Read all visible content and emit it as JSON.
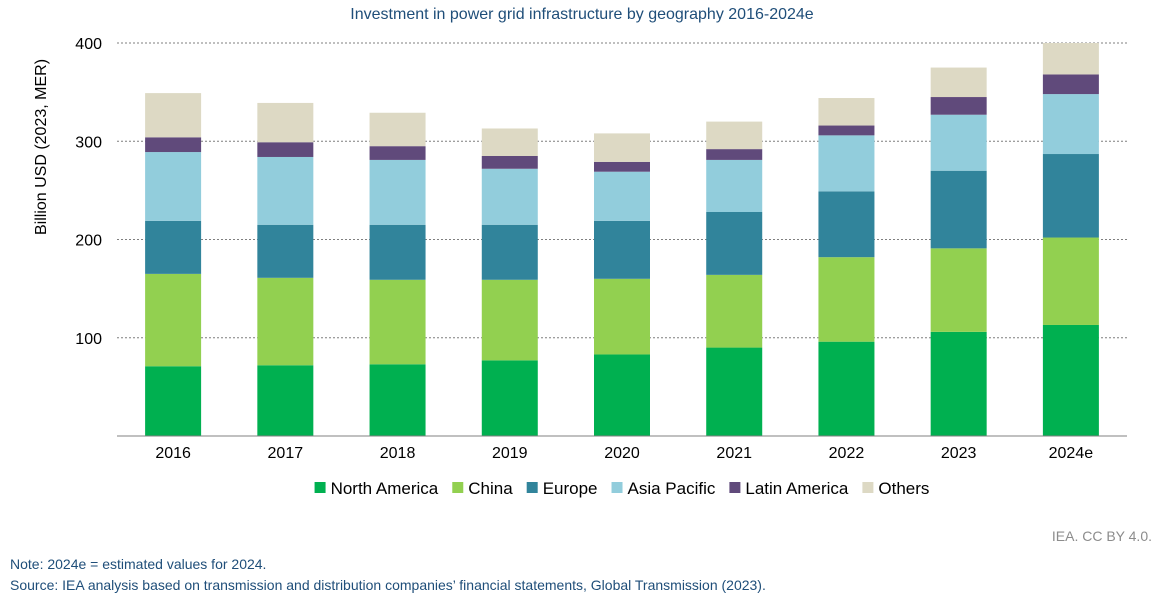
{
  "chart_data": {
    "type": "bar",
    "stacked": true,
    "title": "Investment in power grid infrastructure by geography 2016-2024e",
    "xlabel": "",
    "ylabel": "Billion USD (2023, MER)",
    "ylim": [
      0,
      400
    ],
    "yticks": [
      "100",
      "200",
      "300",
      "400"
    ],
    "grid": true,
    "legend_position": "bottom",
    "categories": [
      "2016",
      "2017",
      "2018",
      "2019",
      "2020",
      "2021",
      "2022",
      "2023",
      "2024e"
    ],
    "series": [
      {
        "name": "North America",
        "color": "#00b050",
        "values": [
          71,
          72,
          73,
          77,
          83,
          90,
          96,
          106,
          113
        ]
      },
      {
        "name": "China",
        "color": "#92d050",
        "values": [
          94,
          89,
          86,
          82,
          77,
          74,
          86,
          85,
          89
        ]
      },
      {
        "name": "Europe",
        "color": "#31849b",
        "values": [
          54,
          54,
          56,
          56,
          59,
          64,
          67,
          79,
          85
        ]
      },
      {
        "name": "Asia Pacific",
        "color": "#92cddc",
        "values": [
          70,
          69,
          66,
          57,
          50,
          53,
          57,
          57,
          61
        ]
      },
      {
        "name": "Latin America",
        "color": "#604a7b",
        "values": [
          15,
          15,
          14,
          13,
          10,
          11,
          10,
          18,
          20
        ]
      },
      {
        "name": "Others",
        "color": "#ddd9c4",
        "values": [
          45,
          40,
          34,
          28,
          29,
          28,
          28,
          30,
          32
        ]
      }
    ]
  },
  "credit": "IEA. CC BY 4.0.",
  "notes": {
    "note": "Note: 2024e = estimated values for 2024.",
    "source": "Source: IEA analysis based on transmission and distribution companies’ financial statements, Global Transmission (2023)."
  }
}
